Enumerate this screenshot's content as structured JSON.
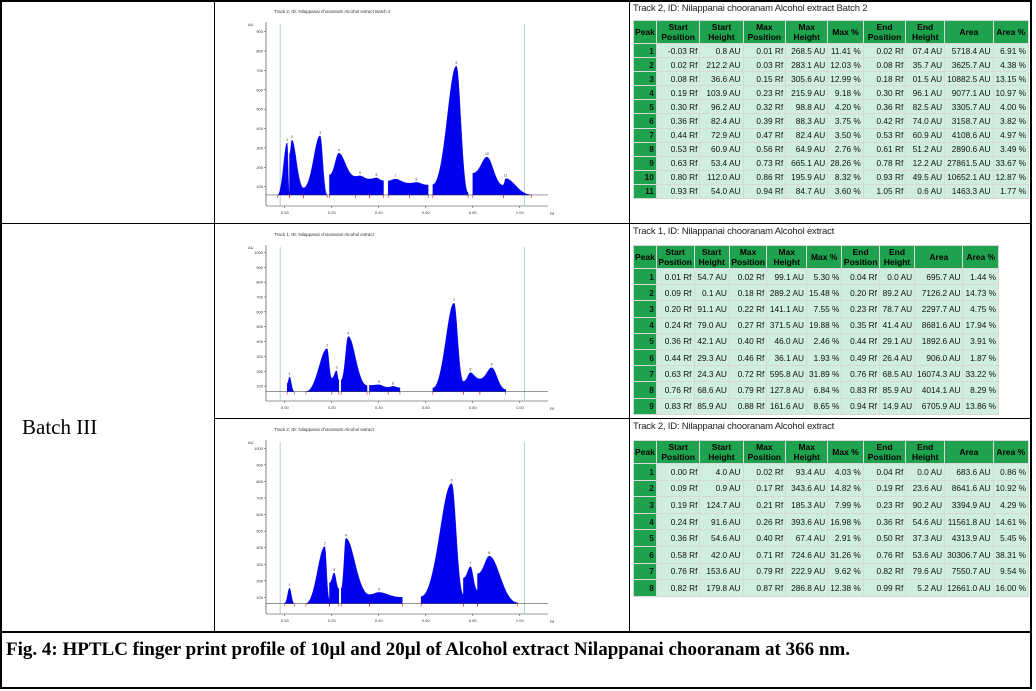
{
  "batch_label": "Batch III",
  "caption": "Fig. 4: HPTLC finger print profile of 10µl and 20µl of Alcohol extract Nilappanai chooranam at 366 nm.",
  "table_headers": [
    "Peak",
    "Start Position",
    "Start Height",
    "Max Position",
    "Max Height",
    "Max %",
    "End Position",
    "End Height",
    "Area",
    "Area %"
  ],
  "charts": [
    {
      "id": "chart-batch2-track2",
      "title": "Track 2, ID: Nilappanai chooranam Alcohol extract Batch 2",
      "y_unit": "AU",
      "x_unit": "Rf",
      "y_ticks": [
        "900",
        "800",
        "700",
        "600",
        "500",
        "400",
        "300",
        "200",
        "100"
      ],
      "x_ticks": [
        "0.00",
        "0.20",
        "0.40",
        "0.60",
        "0.80",
        "1.00"
      ],
      "color": "#0000ee"
    },
    {
      "id": "chart-batch3-track1",
      "title": "Track 1, ID: Nilappanai chooranam Alcohol extract",
      "y_unit": "AU",
      "x_unit": "Rf",
      "y_ticks": [
        "1000",
        "900",
        "800",
        "700",
        "600",
        "500",
        "400",
        "300",
        "200",
        "100"
      ],
      "x_ticks": [
        "0.00",
        "0.20",
        "0.40",
        "0.60",
        "0.80",
        "1.00"
      ],
      "color": "#0000ee"
    },
    {
      "id": "chart-batch3-track2",
      "title": "Track 2, ID: Nilappanai chooranam Alcohol extract",
      "y_unit": "AU",
      "x_unit": "Rf",
      "y_ticks": [
        "1000",
        "900",
        "800",
        "700",
        "600",
        "500",
        "400",
        "300",
        "200",
        "100"
      ],
      "x_ticks": [
        "0.00",
        "0.20",
        "0.40",
        "0.60",
        "0.80",
        "1.00"
      ],
      "color": "#0000ee"
    }
  ],
  "tables": [
    {
      "title": "Track 2, ID: Nilappanai chooranam Alcohol extract Batch 2",
      "rows": [
        [
          "1",
          "-0.03 Rf",
          "0.8 AU",
          "0.01 Rf",
          "268.5 AU",
          "11.41 %",
          "0.02 Rf",
          "07.4 AU",
          "5718.4 AU",
          "6.91 %"
        ],
        [
          "2",
          "0.02 Rf",
          "212.2 AU",
          "0.03 Rf",
          "283.1 AU",
          "12.03 %",
          "0.08 Rf",
          "35.7 AU",
          "3625.7 AU",
          "4.38 %"
        ],
        [
          "3",
          "0.08 Rf",
          "36.6 AU",
          "0.15 Rf",
          "305.6 AU",
          "12.99 %",
          "0.18 Rf",
          "01.5 AU",
          "10882.5 AU",
          "13.15 %"
        ],
        [
          "4",
          "0.19 Rf",
          "103.9 AU",
          "0.23 Rf",
          "215.9 AU",
          "9.18 %",
          "0.30 Rf",
          "96.1 AU",
          "9077.1 AU",
          "10.97 %"
        ],
        [
          "5",
          "0.30 Rf",
          "96.2 AU",
          "0.32 Rf",
          "98.8 AU",
          "4.20 %",
          "0.36 Rf",
          "82.5 AU",
          "3305.7 AU",
          "4.00 %"
        ],
        [
          "6",
          "0.36 Rf",
          "82.4 AU",
          "0.39 Rf",
          "88.3 AU",
          "3.75 %",
          "0.42 Rf",
          "74.0 AU",
          "3158.7 AU",
          "3.82 %"
        ],
        [
          "7",
          "0.44 Rf",
          "72.9 AU",
          "0.47 Rf",
          "82.4 AU",
          "3.50 %",
          "0.53 Rf",
          "60.9 AU",
          "4108.6 AU",
          "4.97 %"
        ],
        [
          "8",
          "0.53 Rf",
          "60.9 AU",
          "0.56 Rf",
          "64.9 AU",
          "2.76 %",
          "0.61 Rf",
          "51.2 AU",
          "2890.6 AU",
          "3.49 %"
        ],
        [
          "9",
          "0.63 Rf",
          "53.4 AU",
          "0.73 Rf",
          "665.1 AU",
          "28.26 %",
          "0.78 Rf",
          "12.2 AU",
          "27861.5 AU",
          "33.67 %"
        ],
        [
          "10",
          "0.80 Rf",
          "112.0 AU",
          "0.86 Rf",
          "195.9 AU",
          "8.32 %",
          "0.93 Rf",
          "49.5 AU",
          "10652.1 AU",
          "12.87 %"
        ],
        [
          "11",
          "0.93 Rf",
          "54.0 AU",
          "0.94 Rf",
          "84.7 AU",
          "3.60 %",
          "1.05 Rf",
          "0.6 AU",
          "1463.3 AU",
          "1.77 %"
        ]
      ]
    },
    {
      "title": "Track 1, ID: Nilappanai chooranam Alcohol extract",
      "rows": [
        [
          "1",
          "0.01 Rf",
          "54.7 AU",
          "0.02 Rf",
          "99.1 AU",
          "5.30 %",
          "0.04 Rf",
          "0.0 AU",
          "695.7 AU",
          "1.44 %"
        ],
        [
          "2",
          "0.09 Rf",
          "0.1 AU",
          "0.18 Rf",
          "289.2 AU",
          "15.48 %",
          "0.20 Rf",
          "89.2 AU",
          "7126.2 AU",
          "14.73 %"
        ],
        [
          "3",
          "0.20 Rf",
          "91.1 AU",
          "0.22 Rf",
          "141.1 AU",
          "7.55 %",
          "0.23 Rf",
          "78.7 AU",
          "2297.7 AU",
          "4.75 %"
        ],
        [
          "4",
          "0.24 Rf",
          "79.0 AU",
          "0.27 Rf",
          "371.5 AU",
          "19.88 %",
          "0.35 Rf",
          "41.4 AU",
          "8681.6 AU",
          "17.94 %"
        ],
        [
          "5",
          "0.36 Rf",
          "42.1 AU",
          "0.40 Rf",
          "46.0 AU",
          "2.46 %",
          "0.44 Rf",
          "29.1 AU",
          "1892.6 AU",
          "3.91 %"
        ],
        [
          "6",
          "0.44 Rf",
          "29.3 AU",
          "0.46 Rf",
          "36.1 AU",
          "1.93 %",
          "0.49 Rf",
          "26.4 AU",
          "906.0 AU",
          "1.87 %"
        ],
        [
          "7",
          "0.63 Rf",
          "24.3 AU",
          "0.72 Rf",
          "595.8 AU",
          "31.89 %",
          "0.76 Rf",
          "68.5 AU",
          "16074.3 AU",
          "33.22 %"
        ],
        [
          "8",
          "0.76 Rf",
          "68.6 AU",
          "0.79 Rf",
          "127.8 AU",
          "6.84 %",
          "0.83 Rf",
          "85.9 AU",
          "4014.1 AU",
          "8.29 %"
        ],
        [
          "9",
          "0.83 Rf",
          "85.9 AU",
          "0.88 Rf",
          "161.6 AU",
          "8.65 %",
          "0.94 Rf",
          "14.9 AU",
          "6705.9 AU",
          "13.86 %"
        ]
      ]
    },
    {
      "title": "Track 2, ID: Nilappanai chooranam Alcohol extract",
      "rows": [
        [
          "1",
          "0.00 Rf",
          "4.0 AU",
          "0.02 Rf",
          "93.4 AU",
          "4.03 %",
          "0.04 Rf",
          "0.0 AU",
          "683.6 AU",
          "0.86 %"
        ],
        [
          "2",
          "0.09 Rf",
          "0.9 AU",
          "0.17 Rf",
          "343.6 AU",
          "14.82 %",
          "0.19 Rf",
          "23.6 AU",
          "8641.6 AU",
          "10.92 %"
        ],
        [
          "3",
          "0.19 Rf",
          "124.7 AU",
          "0.21 Rf",
          "185.3 AU",
          "7.99 %",
          "0.23 Rf",
          "90.2 AU",
          "3394.9 AU",
          "4.29 %"
        ],
        [
          "4",
          "0.24 Rf",
          "91.6 AU",
          "0.26 Rf",
          "393.6 AU",
          "16.98 %",
          "0.36 Rf",
          "54.6 AU",
          "11561.8 AU",
          "14.61 %"
        ],
        [
          "5",
          "0.36 Rf",
          "54.6 AU",
          "0.40 Rf",
          "67.4 AU",
          "2.91 %",
          "0.50 Rf",
          "37.3 AU",
          "4313.9 AU",
          "5.45 %"
        ],
        [
          "6",
          "0.58 Rf",
          "42.0 AU",
          "0.71 Rf",
          "724.6 AU",
          "31.26 %",
          "0.76 Rf",
          "53.6 AU",
          "30306.7 AU",
          "38.31 %"
        ],
        [
          "7",
          "0.76 Rf",
          "153.6 AU",
          "0.79 Rf",
          "222.9 AU",
          "9.62 %",
          "0.82 Rf",
          "79.6 AU",
          "7550.7 AU",
          "9.54 %"
        ],
        [
          "8",
          "0.82 Rf",
          "179.8 AU",
          "0.87 Rf",
          "286.8 AU",
          "12.38 %",
          "0.99 Rf",
          "5.2 AU",
          "12661.0 AU",
          "16.00 %"
        ]
      ]
    }
  ]
}
